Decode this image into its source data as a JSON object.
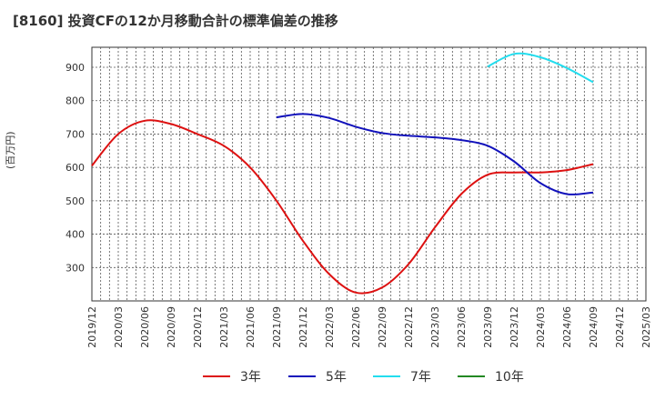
{
  "chart_data": {
    "type": "line",
    "title": "[8160]  投資CFの12か月移動合計の標準偏差の推移",
    "ylabel": "(百万円)",
    "xlabel": "",
    "ylim": [
      200,
      960
    ],
    "yticks": [
      300,
      400,
      500,
      600,
      700,
      800,
      900
    ],
    "x_tick_labels": [
      "2019/12",
      "2020/03",
      "2020/06",
      "2020/09",
      "2020/12",
      "2021/03",
      "2021/06",
      "2021/09",
      "2021/12",
      "2022/03",
      "2022/06",
      "2022/09",
      "2022/12",
      "2023/03",
      "2023/06",
      "2023/09",
      "2023/12",
      "2024/03",
      "2024/06",
      "2024/09",
      "2024/12",
      "2025/03"
    ],
    "grid": true,
    "legend_position": "bottom",
    "series": [
      {
        "name": "3年",
        "color": "#dd1111",
        "x": [
          "2019/12",
          "2020/03",
          "2020/06",
          "2020/09",
          "2020/12",
          "2021/03",
          "2021/06",
          "2021/09",
          "2021/12",
          "2022/03",
          "2022/06",
          "2022/09",
          "2022/12",
          "2023/03",
          "2023/06",
          "2023/09",
          "2023/12",
          "2024/03",
          "2024/06",
          "2024/09"
        ],
        "values": [
          605,
          700,
          740,
          730,
          700,
          665,
          600,
          500,
          380,
          280,
          225,
          240,
          310,
          420,
          520,
          578,
          585,
          585,
          592,
          610
        ]
      },
      {
        "name": "5年",
        "color": "#1111bb",
        "x": [
          "2021/09",
          "2021/12",
          "2022/03",
          "2022/06",
          "2022/09",
          "2022/12",
          "2023/03",
          "2023/06",
          "2023/09",
          "2023/12",
          "2024/03",
          "2024/06",
          "2024/09"
        ],
        "values": [
          750,
          760,
          748,
          722,
          703,
          695,
          690,
          682,
          665,
          618,
          553,
          520,
          525
        ]
      },
      {
        "name": "7年",
        "color": "#22ddee",
        "x": [
          "2023/09",
          "2023/12",
          "2024/03",
          "2024/06",
          "2024/09"
        ],
        "values": [
          902,
          940,
          930,
          898,
          855
        ]
      },
      {
        "name": "10年",
        "color": "#228822",
        "x": [],
        "values": []
      }
    ]
  }
}
